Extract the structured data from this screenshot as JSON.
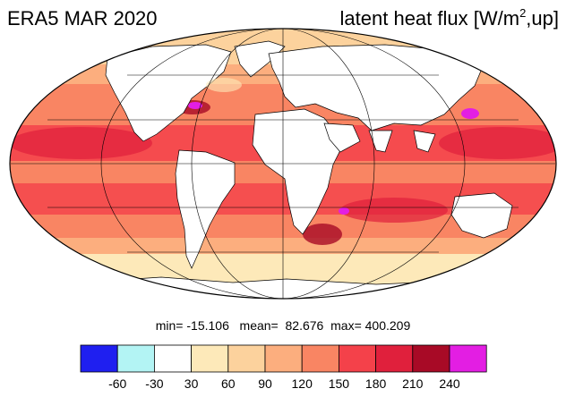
{
  "title": {
    "left": "ERA5 MAR 2020",
    "right_main": "latent heat flux [W/m",
    "right_sup": "2",
    "right_tail": ",up]"
  },
  "stats": {
    "min_label": "min=",
    "min": "-15.106",
    "mean_label": "mean=",
    "mean": "82.676",
    "max_label": "max=",
    "max": "400.209"
  },
  "colorbar": {
    "colors": [
      "#1f1ff0",
      "#b3f4f4",
      "#ffffff",
      "#fde9b9",
      "#fcd29d",
      "#fcae7e",
      "#f98563",
      "#f4414a",
      "#e0203c",
      "#a80a26",
      "#e31ee3"
    ],
    "tick_labels": [
      "-60",
      "-30",
      "30",
      "60",
      "90",
      "120",
      "150",
      "180",
      "210",
      "240"
    ]
  },
  "map": {
    "projection": "Mollweide",
    "ocean_base_color": "#f98563",
    "land_color": "#ffffff",
    "polar_color": "#fcd29d"
  }
}
